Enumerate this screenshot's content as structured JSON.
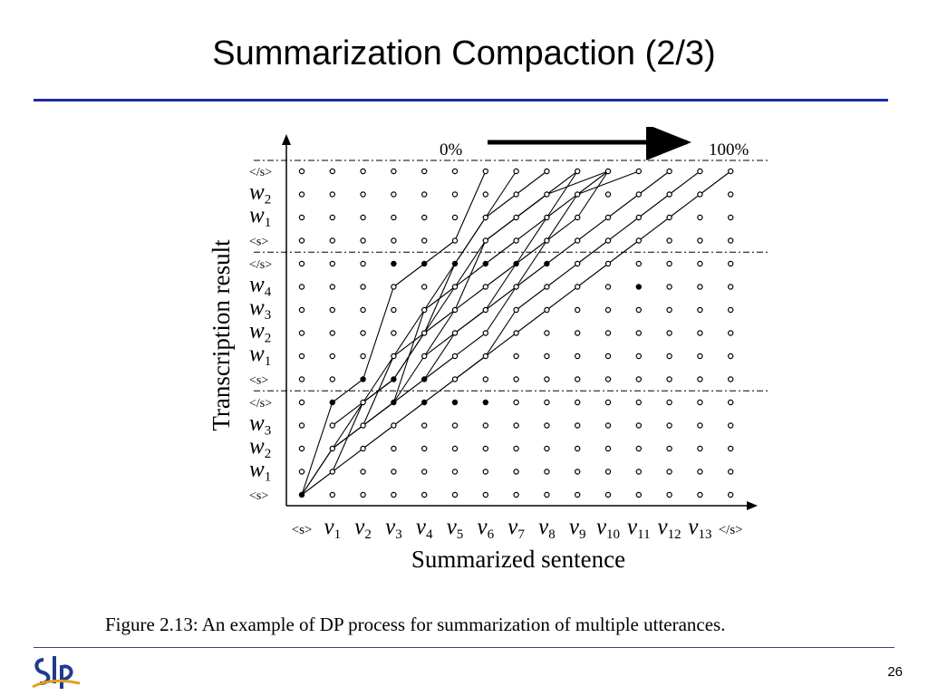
{
  "slide": {
    "title": "Summarization Compaction (2/3)",
    "page_number": "26",
    "logo_text": "SLP"
  },
  "figure": {
    "caption": "Figure 2.13: An example of DP process for summarization of multiple utterances.",
    "y_axis_label": "Transcription result",
    "x_axis_label": "Summarized sentence",
    "progress_start": "0%",
    "progress_end": "100%",
    "x_ticks": [
      {
        "base": "<s>",
        "sub": ""
      },
      {
        "base": "v",
        "sub": "1"
      },
      {
        "base": "v",
        "sub": "2"
      },
      {
        "base": "v",
        "sub": "3"
      },
      {
        "base": "v",
        "sub": "4"
      },
      {
        "base": "v",
        "sub": "5"
      },
      {
        "base": "v",
        "sub": "6"
      },
      {
        "base": "v",
        "sub": "7"
      },
      {
        "base": "v",
        "sub": "8"
      },
      {
        "base": "v",
        "sub": "9"
      },
      {
        "base": "v",
        "sub": "10"
      },
      {
        "base": "v",
        "sub": "11"
      },
      {
        "base": "v",
        "sub": "12"
      },
      {
        "base": "v",
        "sub": "13"
      },
      {
        "base": "</s>",
        "sub": ""
      }
    ],
    "y_ticks": [
      {
        "base": "<s>",
        "sub": ""
      },
      {
        "base": "w",
        "sub": "1"
      },
      {
        "base": "w",
        "sub": "2"
      },
      {
        "base": "w",
        "sub": "3"
      },
      {
        "base": "</s>",
        "sub": ""
      },
      {
        "base": "<s>",
        "sub": ""
      },
      {
        "base": "w",
        "sub": "1"
      },
      {
        "base": "w",
        "sub": "2"
      },
      {
        "base": "w",
        "sub": "3"
      },
      {
        "base": "w",
        "sub": "4"
      },
      {
        "base": "</s>",
        "sub": ""
      },
      {
        "base": "<s>",
        "sub": ""
      },
      {
        "base": "w",
        "sub": "1"
      },
      {
        "base": "w",
        "sub": "2"
      },
      {
        "base": "</s>",
        "sub": ""
      }
    ],
    "utterance_separators_after_rows": [
      4,
      10
    ],
    "paths": [
      [
        [
          0,
          0
        ],
        [
          1,
          1
        ],
        [
          2,
          2
        ],
        [
          3,
          3
        ],
        [
          4,
          4
        ],
        [
          5,
          5
        ],
        [
          6,
          6
        ],
        [
          7,
          7
        ],
        [
          8,
          8
        ],
        [
          9,
          9
        ],
        [
          10,
          10
        ],
        [
          11,
          11
        ],
        [
          12,
          12
        ],
        [
          13,
          13
        ],
        [
          14,
          14
        ]
      ],
      [
        [
          0,
          0
        ],
        [
          1,
          4
        ],
        [
          2,
          5
        ],
        [
          3,
          9
        ],
        [
          4,
          10
        ],
        [
          5,
          11
        ],
        [
          6,
          14
        ]
      ],
      [
        [
          0,
          0
        ],
        [
          1,
          2
        ],
        [
          2,
          3
        ],
        [
          3,
          6
        ],
        [
          4,
          8
        ],
        [
          5,
          10
        ],
        [
          6,
          12
        ],
        [
          7,
          13
        ],
        [
          8,
          14
        ]
      ],
      [
        [
          1,
          1
        ],
        [
          2,
          4
        ],
        [
          3,
          5
        ],
        [
          4,
          7
        ],
        [
          5,
          9
        ],
        [
          6,
          11
        ],
        [
          7,
          12
        ],
        [
          8,
          13
        ],
        [
          9,
          14
        ]
      ],
      [
        [
          0,
          0
        ],
        [
          2,
          4
        ],
        [
          3,
          6
        ],
        [
          4,
          7
        ],
        [
          5,
          8
        ],
        [
          6,
          9
        ],
        [
          7,
          10
        ],
        [
          8,
          11
        ],
        [
          9,
          12
        ],
        [
          10,
          14
        ]
      ],
      [
        [
          1,
          2
        ],
        [
          3,
          4
        ],
        [
          4,
          6
        ],
        [
          5,
          7
        ],
        [
          6,
          8
        ],
        [
          7,
          9
        ],
        [
          8,
          10
        ],
        [
          9,
          11
        ],
        [
          10,
          12
        ],
        [
          11,
          13
        ],
        [
          12,
          14
        ]
      ],
      [
        [
          1,
          3
        ],
        [
          3,
          5
        ],
        [
          4,
          7
        ],
        [
          5,
          10
        ],
        [
          6,
          12
        ],
        [
          7,
          14
        ]
      ],
      [
        [
          2,
          3
        ],
        [
          4,
          5
        ],
        [
          5,
          6
        ],
        [
          6,
          7
        ],
        [
          7,
          9
        ],
        [
          8,
          11
        ],
        [
          9,
          13
        ],
        [
          11,
          14
        ]
      ],
      [
        [
          3,
          4
        ],
        [
          4,
          8
        ],
        [
          5,
          9
        ],
        [
          6,
          10
        ],
        [
          7,
          11
        ],
        [
          8,
          12
        ],
        [
          9,
          13
        ],
        [
          10,
          14
        ]
      ],
      [
        [
          4,
          5
        ],
        [
          5,
          7
        ],
        [
          6,
          8
        ],
        [
          7,
          10
        ],
        [
          8,
          12
        ],
        [
          9,
          14
        ]
      ],
      [
        [
          4,
          6
        ],
        [
          5,
          8
        ],
        [
          6,
          11
        ],
        [
          7,
          12
        ],
        [
          8,
          13
        ],
        [
          10,
          14
        ]
      ],
      [
        [
          5,
          5
        ],
        [
          6,
          6
        ],
        [
          7,
          8
        ],
        [
          8,
          9
        ],
        [
          9,
          10
        ],
        [
          10,
          11
        ],
        [
          11,
          12
        ],
        [
          12,
          13
        ],
        [
          13,
          14
        ]
      ]
    ],
    "filled_nodes": [
      [
        0,
        0
      ],
      [
        1,
        4
      ],
      [
        2,
        5
      ],
      [
        3,
        5
      ],
      [
        3,
        10
      ],
      [
        4,
        4
      ],
      [
        4,
        10
      ],
      [
        5,
        4
      ],
      [
        5,
        10
      ],
      [
        6,
        10
      ],
      [
        7,
        10
      ],
      [
        8,
        10
      ],
      [
        11,
        9
      ],
      [
        4,
        5
      ],
      [
        3,
        4
      ],
      [
        6,
        4
      ]
    ]
  }
}
